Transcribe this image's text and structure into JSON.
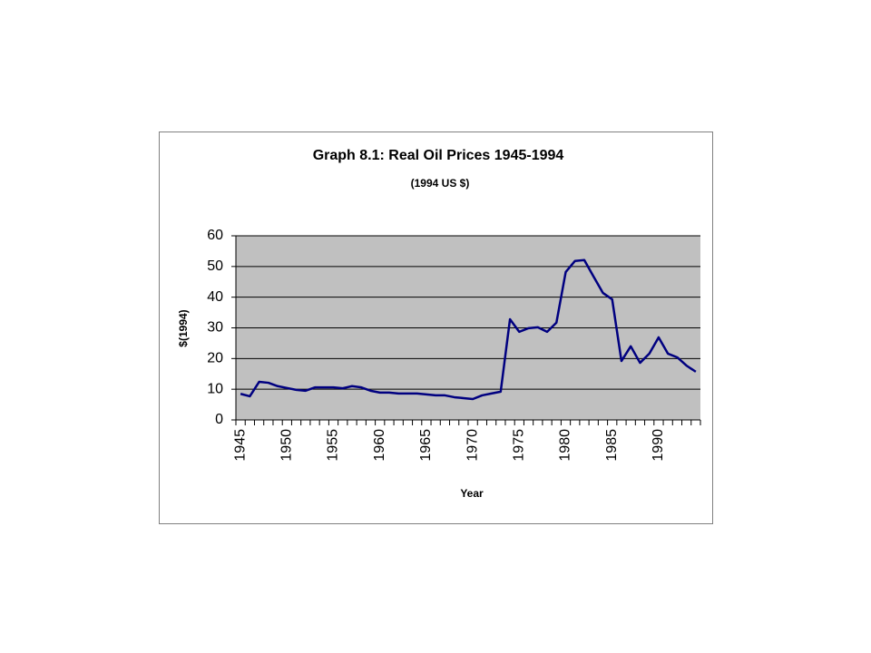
{
  "chart_data": {
    "type": "line",
    "title": "Graph 8.1: Real Oil Prices 1945-1994",
    "subtitle": "(1994 US $)",
    "x_label": "Year",
    "y_label": "$(1994)",
    "categories": [
      "1945",
      null,
      null,
      null,
      null,
      "1950",
      null,
      null,
      null,
      null,
      "1955",
      null,
      null,
      null,
      null,
      "1960",
      null,
      null,
      null,
      null,
      "1965",
      null,
      null,
      null,
      null,
      "1970",
      null,
      null,
      null,
      null,
      "1975",
      null,
      null,
      null,
      null,
      "1980",
      null,
      null,
      null,
      null,
      "1985",
      null,
      null,
      null,
      null,
      "1990",
      null,
      null,
      null,
      null
    ],
    "values": [
      8.5,
      7.7,
      12.4,
      12.1,
      11,
      10.4,
      9.8,
      9.5,
      10.6,
      10.6,
      10.6,
      10.3,
      11,
      10.6,
      9.5,
      8.9,
      8.9,
      8.6,
      8.6,
      8.6,
      8.3,
      8.0,
      8.0,
      7.4,
      7.1,
      6.8,
      8.0,
      8.6,
      9.2,
      32.8,
      28.7,
      29.9,
      30.2,
      28.7,
      31.7,
      48.2,
      51.8,
      52.1,
      46.7,
      41.4,
      39.3,
      19.2,
      24,
      18.6,
      21.6,
      26.9,
      21.6,
      20.4,
      17.7,
      15.7
    ],
    "color": "#000080",
    "ylim": [
      0,
      60
    ],
    "yticks": [
      0,
      10,
      20,
      30,
      40,
      50,
      60
    ],
    "grid": true
  }
}
